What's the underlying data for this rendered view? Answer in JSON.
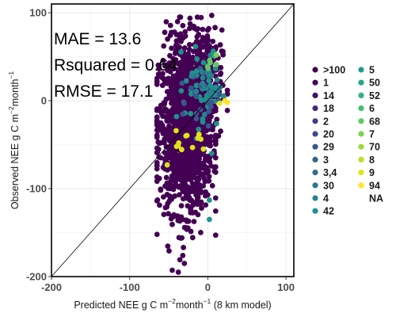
{
  "chart_data": {
    "type": "scatter",
    "title": "",
    "xlabel": {
      "prefix": "Predicted NEE g C m",
      "sup1": "−2",
      "mid": "month",
      "sup2": "−1",
      "suffix": " (8 km model)"
    },
    "ylabel": {
      "prefix": "Observed NEE g C m",
      "sup1": "−2",
      "mid": "month",
      "sup2": "−1",
      "suffix": ""
    },
    "xlim": [
      -200,
      110
    ],
    "ylim": [
      -200,
      110
    ],
    "xticks": [
      -200,
      -100,
      0,
      100
    ],
    "xtick_labels": [
      "-200",
      "-100",
      "0",
      "100"
    ],
    "yticks": [
      -200,
      -100,
      0,
      100
    ],
    "ytick_labels": [
      "-200",
      "-100",
      "0",
      "100"
    ],
    "grid": true,
    "one_to_one_line": true,
    "annotations": [
      "MAE = 13.6",
      "Rsquared = 0.64",
      "RMSE = 17.1"
    ],
    "legend_position": "right",
    "legend": [
      {
        "label": ">100",
        "color": "#440154"
      },
      {
        "label": "1",
        "color": "#46085c"
      },
      {
        "label": "14",
        "color": "#471164"
      },
      {
        "label": "18",
        "color": "#472c7a"
      },
      {
        "label": "2",
        "color": "#433e85"
      },
      {
        "label": "20",
        "color": "#3e4a89"
      },
      {
        "label": "29",
        "color": "#38588c"
      },
      {
        "label": "3",
        "color": "#33638d"
      },
      {
        "label": "3,4",
        "color": "#2e6f8e"
      },
      {
        "label": "30",
        "color": "#2a788e"
      },
      {
        "label": "4",
        "color": "#25838e"
      },
      {
        "label": "42",
        "color": "#21908d"
      },
      {
        "label": "5",
        "color": "#1f9a8a"
      },
      {
        "label": "50",
        "color": "#22a884"
      },
      {
        "label": "52",
        "color": "#2db27d"
      },
      {
        "label": "6",
        "color": "#44bf70"
      },
      {
        "label": "68",
        "color": "#5ec962"
      },
      {
        "label": "7",
        "color": "#7ad151"
      },
      {
        "label": "70",
        "color": "#9bd93c"
      },
      {
        "label": "8",
        "color": "#bddf26"
      },
      {
        "label": "9",
        "color": "#dfe318"
      },
      {
        "label": "94",
        "color": "#fde725"
      },
      {
        "label": "NA",
        "color": null
      }
    ],
    "point_clusters": [
      {
        "group": ">100",
        "color": "#440154",
        "n": 1400,
        "center": [
          -28,
          -30
        ],
        "spread": [
          17,
          48
        ],
        "clip": [
          -65,
          10,
          -195,
          95
        ]
      },
      {
        "group": ">100",
        "color": "#440154",
        "n": 200,
        "center": [
          -8,
          20
        ],
        "spread": [
          13,
          30
        ],
        "clip": [
          -40,
          25,
          -40,
          95
        ]
      },
      {
        "group": "42",
        "color": "#21908d",
        "n": 45,
        "center": [
          -5,
          15
        ],
        "spread": [
          12,
          22
        ],
        "clip": [
          -40,
          20,
          -135,
          80
        ]
      },
      {
        "group": "29",
        "color": "#38588c",
        "n": 25,
        "center": [
          -10,
          5
        ],
        "spread": [
          14,
          20
        ],
        "clip": [
          -45,
          20,
          -80,
          60
        ]
      },
      {
        "group": "4",
        "color": "#25838e",
        "n": 20,
        "center": [
          0,
          20
        ],
        "spread": [
          8,
          15
        ],
        "clip": [
          -25,
          20,
          -30,
          60
        ]
      },
      {
        "group": "68",
        "color": "#5ec962",
        "n": 6,
        "center": [
          10,
          40
        ],
        "spread": [
          6,
          10
        ],
        "clip": [
          -10,
          25,
          20,
          55
        ]
      },
      {
        "group": "9",
        "color": "#dfe318",
        "n": 10,
        "center": [
          -25,
          -45
        ],
        "spread": [
          15,
          10
        ],
        "clip": [
          -60,
          25,
          -70,
          5
        ]
      }
    ],
    "point_values": [
      {
        "group": "94",
        "x": 22,
        "y": 0,
        "color": "#fde725"
      },
      {
        "group": "94",
        "x": 25,
        "y": -2,
        "color": "#fde725"
      },
      {
        "group": "9",
        "x": -52,
        "y": -73,
        "color": "#dfe318"
      },
      {
        "group": "9",
        "x": -40,
        "y": -52,
        "color": "#dfe318"
      },
      {
        "group": "9",
        "x": -28,
        "y": -40,
        "color": "#dfe318"
      },
      {
        "group": "9",
        "x": 15,
        "y": -3,
        "color": "#dfe318"
      },
      {
        "group": "42",
        "x": 2,
        "y": -135,
        "color": "#21908d"
      },
      {
        "group": "42",
        "x": 2,
        "y": -113,
        "color": "#21908d"
      },
      {
        "group": "42",
        "x": 5,
        "y": -60,
        "color": "#21908d"
      },
      {
        "group": "50",
        "x": 8,
        "y": 52,
        "color": "#22a884"
      },
      {
        "group": "7",
        "x": 11,
        "y": 52,
        "color": "#7ad151"
      },
      {
        "group": ">100",
        "x": 5,
        "y": 97,
        "color": "#440154"
      },
      {
        "group": ">100",
        "x": -30,
        "y": -185,
        "color": "#440154"
      },
      {
        "group": ">100",
        "x": -32,
        "y": -176,
        "color": "#440154"
      }
    ]
  }
}
